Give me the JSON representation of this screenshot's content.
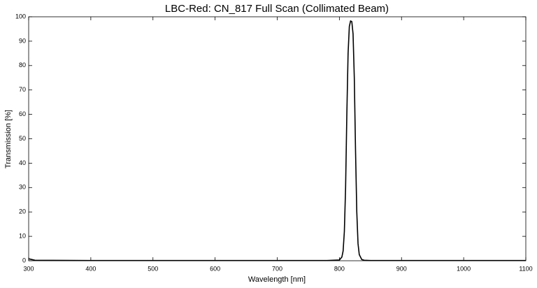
{
  "chart_data": {
    "type": "line",
    "title": "LBC-Red: CN_817 Full Scan (Collimated Beam)",
    "x_label": "Wavelength [nm]",
    "y_label": "Transmission [%]",
    "x": [
      300,
      310,
      400,
      500,
      600,
      700,
      780,
      800,
      804,
      806,
      808,
      810,
      812,
      814,
      816,
      818,
      820,
      822,
      824,
      826,
      828,
      830,
      832,
      836,
      840,
      850,
      900,
      1000,
      1100
    ],
    "series": [
      {
        "name": "CN_817",
        "color": "#000000",
        "values": [
          0.8,
          0.2,
          0.1,
          0.1,
          0.1,
          0.1,
          0.1,
          0.3,
          1.5,
          4,
          12,
          30,
          60,
          85,
          96,
          98.3,
          98,
          93,
          75,
          45,
          20,
          7,
          2.5,
          0.5,
          0.2,
          0.1,
          0.1,
          0.1,
          0.1
        ]
      }
    ],
    "xlim": [
      300,
      1100
    ],
    "ylim": [
      0,
      100
    ],
    "xticks": [
      300,
      400,
      500,
      600,
      700,
      800,
      900,
      1000,
      1100
    ],
    "yticks": [
      0,
      10,
      20,
      30,
      40,
      50,
      60,
      70,
      80,
      90,
      100
    ],
    "grid": false
  }
}
